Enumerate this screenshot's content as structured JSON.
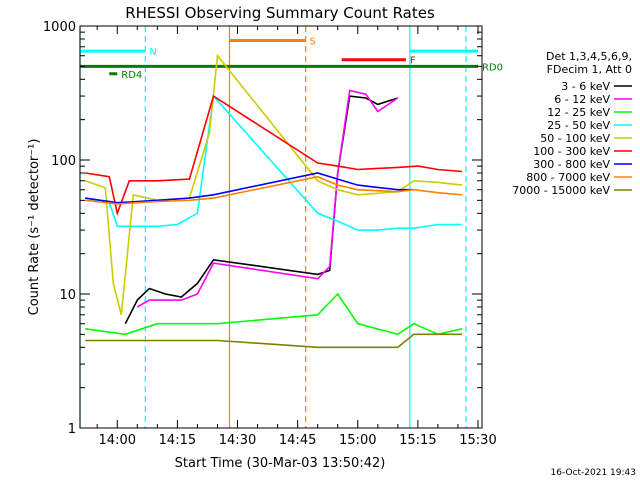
{
  "chart_data": {
    "type": "line",
    "title": "RHESSI Observing Summary Count Rates",
    "xlabel": "Start Time (30-Mar-03 13:50:42)",
    "ylabel": "Count Rate (s⁻¹ detector⁻¹)",
    "yscale": "log",
    "ylim": [
      1,
      1000
    ],
    "xlim": [
      "13:50:42",
      "15:31:00"
    ],
    "x_ticks": [
      "14:00",
      "14:15",
      "14:30",
      "14:45",
      "15:00",
      "15:15",
      "15:30"
    ],
    "y_ticks": [
      "1",
      "10",
      "100",
      "1000"
    ],
    "timestamp": "16-Oct-2021 19:43",
    "legend": {
      "placement": "right",
      "header": [
        "Det 1,3,4,5,6,9,",
        "FDecim 1, Att 0"
      ]
    },
    "series": [
      {
        "name": "3 - 6 keV",
        "color": "#000000",
        "points": [
          [
            "14:02",
            6
          ],
          [
            "14:05",
            9
          ],
          [
            "14:08",
            11
          ],
          [
            "14:12",
            10
          ],
          [
            "14:16",
            9.5
          ],
          [
            "14:20",
            12
          ],
          [
            "14:24",
            18
          ],
          [
            "14:50",
            14
          ],
          [
            "14:53",
            15
          ],
          [
            "14:55",
            80
          ],
          [
            "14:58",
            300
          ],
          [
            "15:02",
            290
          ],
          [
            "15:05",
            260
          ],
          [
            "15:10",
            290
          ]
        ]
      },
      {
        "name": "6 - 12 keV",
        "color": "#ff00ff",
        "points": [
          [
            "14:05",
            8
          ],
          [
            "14:08",
            9
          ],
          [
            "14:12",
            9
          ],
          [
            "14:16",
            9
          ],
          [
            "14:20",
            10
          ],
          [
            "14:24",
            17
          ],
          [
            "14:50",
            13
          ],
          [
            "14:53",
            16
          ],
          [
            "14:55",
            80
          ],
          [
            "14:58",
            330
          ],
          [
            "15:02",
            310
          ],
          [
            "15:05",
            230
          ],
          [
            "15:10",
            290
          ]
        ]
      },
      {
        "name": "12 - 25 keV",
        "color": "#00ff00",
        "points": [
          [
            "13:52",
            5.5
          ],
          [
            "14:02",
            5
          ],
          [
            "14:10",
            6
          ],
          [
            "14:18",
            6
          ],
          [
            "14:25",
            6
          ],
          [
            "14:50",
            7
          ],
          [
            "14:55",
            10
          ],
          [
            "15:00",
            6
          ],
          [
            "15:10",
            5
          ],
          [
            "15:14",
            6
          ],
          [
            "15:20",
            5
          ],
          [
            "15:26",
            5.5
          ]
        ]
      },
      {
        "name": "25 - 50 keV",
        "color": "#00ffff",
        "points": [
          [
            "13:52",
            52
          ],
          [
            "13:58",
            48
          ],
          [
            "14:00",
            32
          ],
          [
            "14:05",
            32
          ],
          [
            "14:10",
            32
          ],
          [
            "14:15",
            33
          ],
          [
            "14:20",
            40
          ],
          [
            "14:24",
            300
          ],
          [
            "14:50",
            40
          ],
          [
            "14:55",
            35
          ],
          [
            "15:00",
            30
          ],
          [
            "15:05",
            30
          ],
          [
            "15:10",
            31
          ],
          [
            "15:14",
            31
          ],
          [
            "15:20",
            33
          ],
          [
            "15:26",
            33
          ]
        ]
      },
      {
        "name": "50 - 100 keV",
        "color": "#cccc00",
        "points": [
          [
            "13:52",
            70
          ],
          [
            "13:57",
            62
          ],
          [
            "13:59",
            12
          ],
          [
            "14:01",
            7
          ],
          [
            "14:04",
            55
          ],
          [
            "14:10",
            50
          ],
          [
            "14:18",
            52
          ],
          [
            "14:23",
            160
          ],
          [
            "14:25",
            600
          ],
          [
            "14:50",
            70
          ],
          [
            "14:55",
            60
          ],
          [
            "15:00",
            55
          ],
          [
            "15:10",
            58
          ],
          [
            "15:14",
            70
          ],
          [
            "15:20",
            68
          ],
          [
            "15:26",
            65
          ]
        ]
      },
      {
        "name": "100 - 300 keV",
        "color": "#ff0000",
        "points": [
          [
            "13:52",
            80
          ],
          [
            "13:58",
            75
          ],
          [
            "14:00",
            40
          ],
          [
            "14:03",
            70
          ],
          [
            "14:10",
            70
          ],
          [
            "14:18",
            72
          ],
          [
            "14:24",
            300
          ],
          [
            "14:50",
            95
          ],
          [
            "14:55",
            90
          ],
          [
            "15:00",
            85
          ],
          [
            "15:10",
            88
          ],
          [
            "15:15",
            90
          ],
          [
            "15:20",
            85
          ],
          [
            "15:26",
            82
          ]
        ]
      },
      {
        "name": "300 - 800 keV",
        "color": "#0000ff",
        "points": [
          [
            "13:52",
            52
          ],
          [
            "14:00",
            48
          ],
          [
            "14:10",
            50
          ],
          [
            "14:18",
            52
          ],
          [
            "14:24",
            55
          ],
          [
            "14:50",
            80
          ],
          [
            "14:55",
            72
          ],
          [
            "15:00",
            65
          ],
          [
            "15:10",
            60
          ],
          [
            "15:14",
            60
          ]
        ]
      },
      {
        "name": "800 - 7000 keV",
        "color": "#ff8000",
        "points": [
          [
            "13:52",
            50
          ],
          [
            "14:00",
            47
          ],
          [
            "14:10",
            49
          ],
          [
            "14:18",
            50
          ],
          [
            "14:24",
            52
          ],
          [
            "14:50",
            75
          ],
          [
            "14:55",
            65
          ],
          [
            "15:00",
            60
          ],
          [
            "15:10",
            58
          ],
          [
            "15:14",
            60
          ],
          [
            "15:20",
            57
          ],
          [
            "15:26",
            55
          ]
        ]
      },
      {
        "name": "7000 - 15000 keV",
        "color": "#808000",
        "points": [
          [
            "13:52",
            4.5
          ],
          [
            "14:02",
            4.5
          ],
          [
            "14:10",
            4.5
          ],
          [
            "14:18",
            4.5
          ],
          [
            "14:25",
            4.5
          ],
          [
            "14:50",
            4
          ],
          [
            "14:55",
            4
          ],
          [
            "15:00",
            4
          ],
          [
            "15:10",
            4
          ],
          [
            "15:14",
            5
          ],
          [
            "15:20",
            5
          ],
          [
            "15:26",
            5
          ]
        ]
      }
    ],
    "flags": [
      {
        "label": "N",
        "color": "#00ffff",
        "start": "13:50:42",
        "end": "14:07",
        "level": 650
      },
      {
        "label": "S",
        "color": "#ff8000",
        "start": "14:28",
        "end": "14:47",
        "level": 780
      },
      {
        "label": "F",
        "color": "#ff0000",
        "start": "14:56",
        "end": "15:12",
        "level": 560
      },
      {
        "label": "RD0",
        "color": "#008000",
        "start": "13:50:42",
        "end": "15:30",
        "level": 500
      },
      {
        "label": "RD4",
        "color": "#008000",
        "start": "13:58",
        "end": "14:00",
        "level": 440
      },
      {
        "label": "",
        "color": "#00ffff",
        "start": "15:13",
        "end": "15:30",
        "level": 650
      }
    ],
    "markers": [
      {
        "time": "13:50:42",
        "color": "#00ffff",
        "style": "solid"
      },
      {
        "time": "14:07",
        "color": "#00ffff",
        "style": "dashed"
      },
      {
        "time": "14:28",
        "color": "#ff8000",
        "style": "solid"
      },
      {
        "time": "14:47",
        "color": "#ff8000",
        "style": "dashed"
      },
      {
        "time": "15:13",
        "color": "#00ffff",
        "style": "solid"
      },
      {
        "time": "15:27",
        "color": "#00ffff",
        "style": "dashed"
      }
    ]
  }
}
